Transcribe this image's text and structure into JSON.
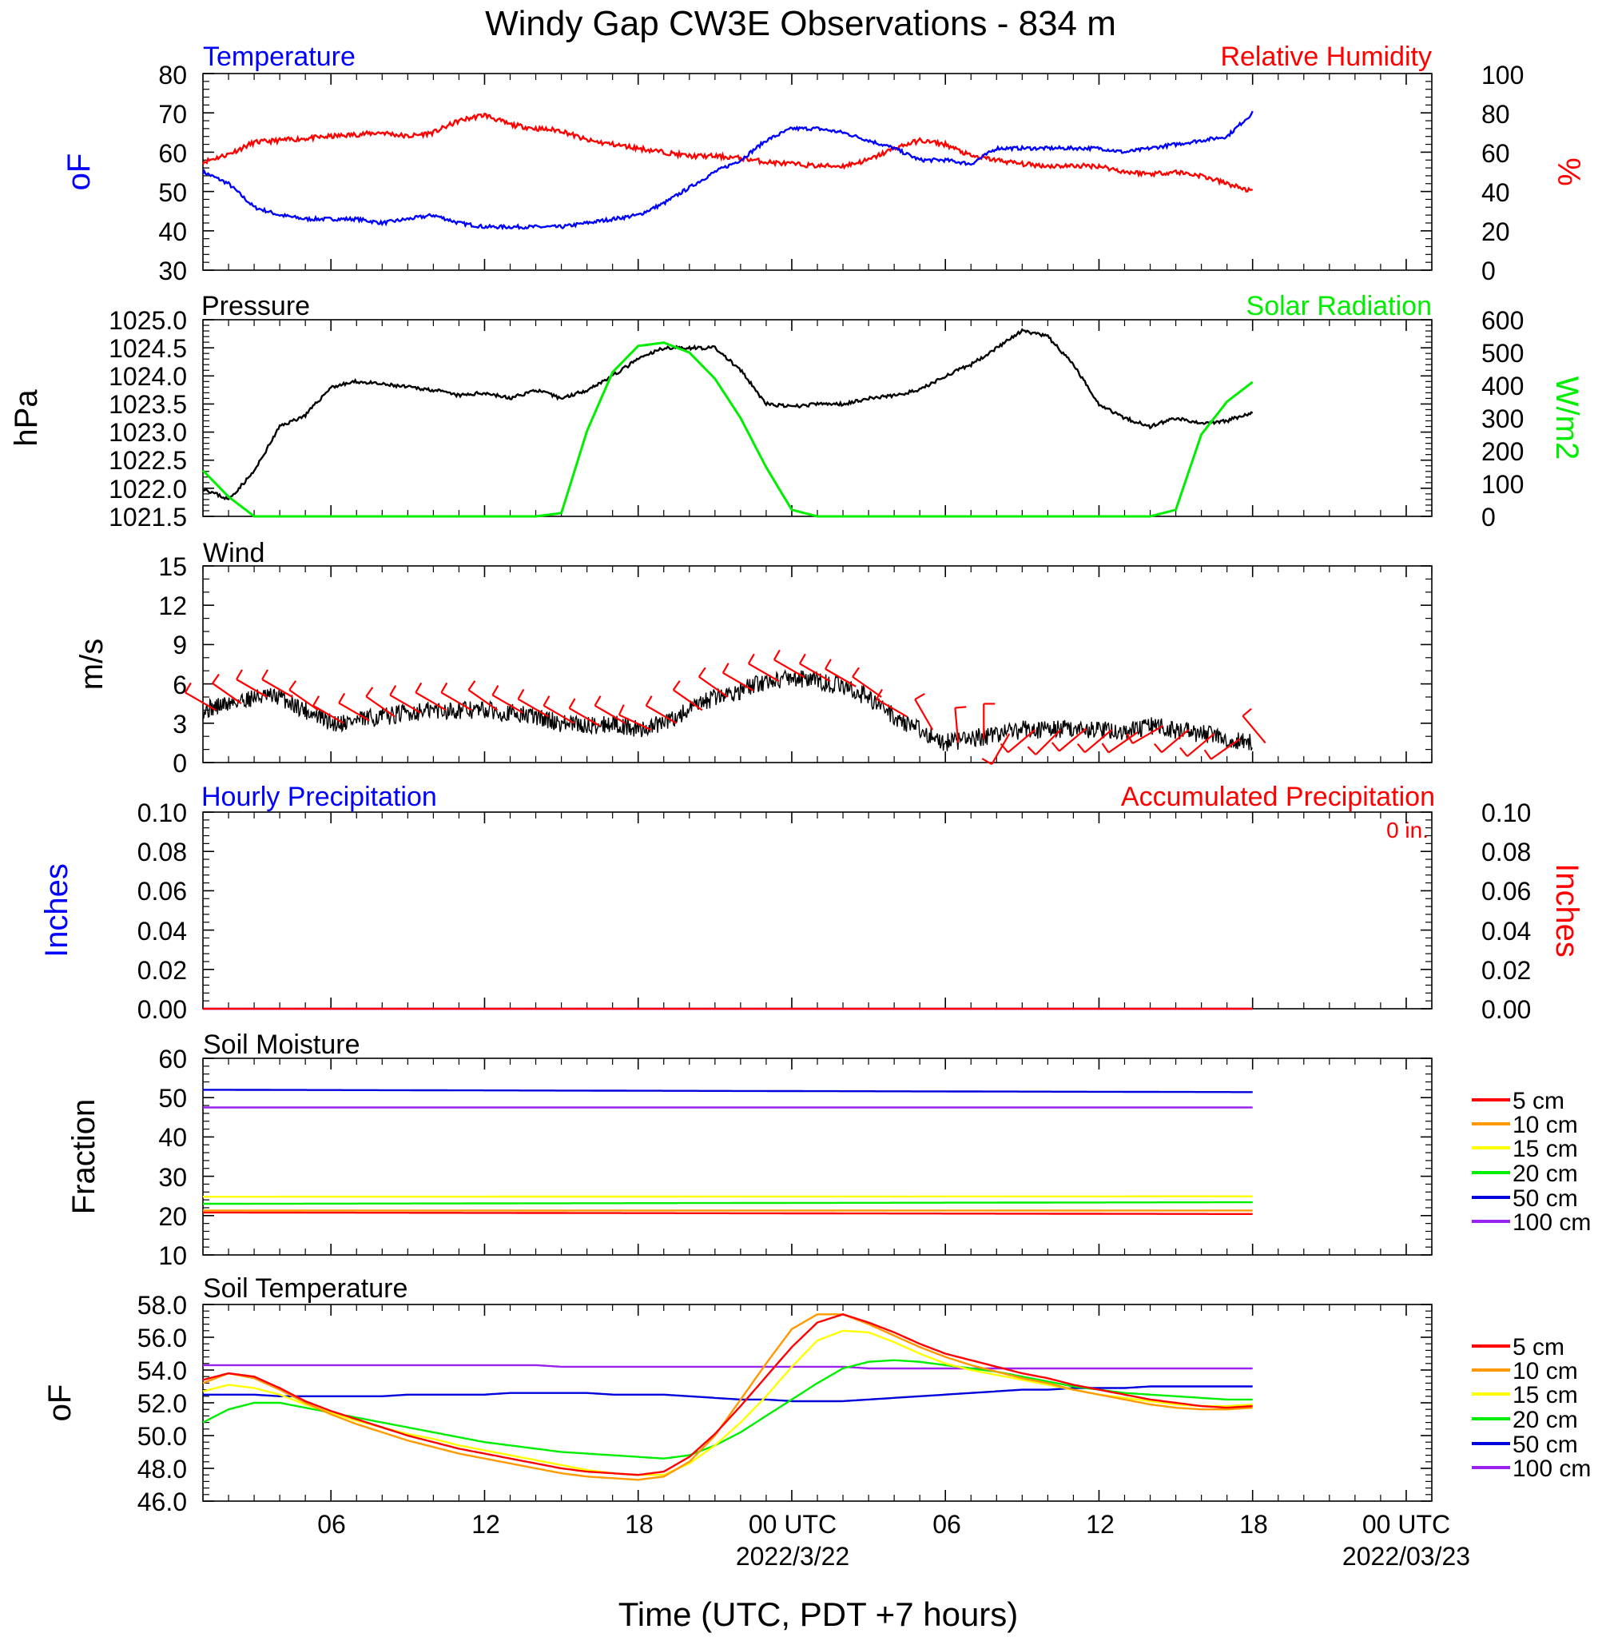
{
  "title": "Windy Gap CW3E Observations - 834 m",
  "x_axis": {
    "label": "Time (UTC, PDT +7 hours)",
    "range_hours": [
      0,
      48
    ],
    "ticks": [
      {
        "h": 5,
        "label": "06",
        "sub": ""
      },
      {
        "h": 11,
        "label": "12",
        "sub": ""
      },
      {
        "h": 17,
        "label": "18",
        "sub": ""
      },
      {
        "h": 23,
        "label": "00 UTC",
        "sub": "2022/3/22"
      },
      {
        "h": 29,
        "label": "06",
        "sub": ""
      },
      {
        "h": 35,
        "label": "12",
        "sub": ""
      },
      {
        "h": 41,
        "label": "18",
        "sub": ""
      },
      {
        "h": 47,
        "label": "00 UTC",
        "sub": "2022/03/23"
      }
    ]
  },
  "colors": {
    "temperature": "#0000ff",
    "humidity": "#ff0000",
    "pressure": "#000000",
    "solar": "#00ee00",
    "wind": "#000000",
    "barb": "#ff0000",
    "hourly_precip": "#0000ff",
    "accum_precip": "#ff0000",
    "depth_5": "#ff0000",
    "depth_10": "#ff9900",
    "depth_15": "#ffff00",
    "depth_20": "#00ee00",
    "depth_50": "#0000dd",
    "depth_100": "#9922ee"
  },
  "panels": {
    "temp_rh": {
      "title_left": "Temperature",
      "title_right": "Relative Humidity",
      "left_unit": "oF",
      "right_unit": "%",
      "left_ticks": [
        "80",
        "70",
        "60",
        "50",
        "40",
        "30"
      ],
      "right_ticks": [
        "100",
        "80",
        "60",
        "40",
        "20",
        "0"
      ]
    },
    "pressure_solar": {
      "title_left": "Pressure",
      "title_right": "Solar Radiation",
      "left_unit": "hPa",
      "right_unit": "W/m2",
      "left_ticks": [
        "1025.0",
        "1024.5",
        "1024.0",
        "1023.5",
        "1023.0",
        "1022.5",
        "1022.0",
        "1021.5"
      ],
      "right_ticks": [
        "600",
        "500",
        "400",
        "300",
        "200",
        "100",
        "0"
      ]
    },
    "wind": {
      "title_left": "Wind",
      "left_unit": "m/s",
      "left_ticks": [
        "15",
        "12",
        "9",
        "6",
        "3",
        "0"
      ]
    },
    "precip": {
      "title_left": "Hourly Precipitation",
      "title_right": "Accumulated Precipitation",
      "total": "0 in.",
      "left_unit": "Inches",
      "right_unit": "Inches",
      "left_ticks": [
        "0.10",
        "0.08",
        "0.06",
        "0.04",
        "0.02",
        "0.00"
      ],
      "right_ticks": [
        "0.10",
        "0.08",
        "0.06",
        "0.04",
        "0.02",
        "0.00"
      ]
    },
    "soil_moisture": {
      "title_left": "Soil Moisture",
      "left_unit": "Fraction",
      "left_ticks": [
        "60",
        "50",
        "40",
        "30",
        "20",
        "10"
      ],
      "legend": [
        "5 cm",
        "10 cm",
        "15 cm",
        "20 cm",
        "50 cm",
        "100 cm"
      ]
    },
    "soil_temp": {
      "title_left": "Soil Temperature",
      "left_unit": "oF",
      "left_ticks": [
        "58.0",
        "56.0",
        "54.0",
        "52.0",
        "50.0",
        "48.0",
        "46.0"
      ],
      "legend": [
        "5 cm",
        "10 cm",
        "15 cm",
        "20 cm",
        "50 cm",
        "100 cm"
      ]
    }
  },
  "chart_data": [
    {
      "type": "line",
      "title": "Temperature / Relative Humidity",
      "x_hours": [
        0,
        1,
        2,
        3,
        4,
        5,
        6,
        7,
        8,
        9,
        10,
        11,
        12,
        13,
        14,
        15,
        16,
        17,
        18,
        19,
        20,
        21,
        22,
        23,
        24,
        25,
        26,
        27,
        28,
        29,
        30,
        31,
        32,
        33,
        34,
        35,
        36,
        37,
        38,
        39,
        40,
        41
      ],
      "ylim_left": [
        30,
        80
      ],
      "ylim_right": [
        0,
        100
      ],
      "series": [
        {
          "name": "Temperature",
          "axis": "left",
          "values": [
            55,
            52,
            46,
            44,
            43,
            43,
            43,
            42,
            43,
            44,
            42,
            41,
            41,
            41,
            41,
            42,
            43,
            44,
            47,
            51,
            55,
            58,
            63,
            66,
            66,
            65,
            63,
            61,
            58,
            58,
            57,
            61,
            61,
            61,
            61,
            61,
            60,
            61,
            62,
            63,
            64,
            70
          ]
        },
        {
          "name": "Relative Humidity",
          "axis": "right",
          "values": [
            55,
            59,
            65,
            66,
            67,
            68,
            69,
            70,
            68,
            70,
            76,
            79,
            74,
            72,
            71,
            66,
            64,
            62,
            60,
            58,
            58,
            57,
            55,
            54,
            53,
            53,
            56,
            62,
            66,
            64,
            58,
            56,
            54,
            53,
            53,
            53,
            50,
            49,
            50,
            48,
            44,
            40
          ]
        }
      ]
    },
    {
      "type": "line",
      "title": "Pressure / Solar Radiation",
      "x_hours": [
        0,
        1,
        2,
        3,
        4,
        5,
        6,
        7,
        8,
        9,
        10,
        11,
        12,
        13,
        14,
        15,
        16,
        17,
        18,
        19,
        20,
        21,
        22,
        23,
        24,
        25,
        26,
        27,
        28,
        29,
        30,
        31,
        32,
        33,
        34,
        35,
        36,
        37,
        38,
        39,
        40,
        41
      ],
      "ylim_left": [
        1021.5,
        1025.0
      ],
      "ylim_right": [
        0,
        600
      ],
      "series": [
        {
          "name": "Pressure",
          "axis": "left",
          "values": [
            1022.0,
            1021.8,
            1022.3,
            1023.1,
            1023.3,
            1023.8,
            1023.9,
            1023.85,
            1023.8,
            1023.75,
            1023.65,
            1023.7,
            1023.6,
            1023.75,
            1023.6,
            1023.75,
            1024.0,
            1024.3,
            1024.5,
            1024.5,
            1024.5,
            1024.1,
            1023.5,
            1023.45,
            1023.5,
            1023.5,
            1023.6,
            1023.65,
            1023.75,
            1024.0,
            1024.2,
            1024.5,
            1024.8,
            1024.7,
            1024.2,
            1023.5,
            1023.25,
            1023.1,
            1023.25,
            1023.15,
            1023.2,
            1023.35
          ]
        },
        {
          "name": "Solar Radiation",
          "axis": "right",
          "values": [
            140,
            60,
            0,
            0,
            0,
            0,
            0,
            0,
            0,
            0,
            0,
            0,
            0,
            0,
            10,
            260,
            440,
            520,
            530,
            500,
            420,
            300,
            150,
            20,
            0,
            0,
            0,
            0,
            0,
            0,
            0,
            0,
            0,
            0,
            0,
            0,
            0,
            0,
            20,
            250,
            350,
            410
          ]
        }
      ]
    },
    {
      "type": "line",
      "title": "Wind",
      "x_hours": [
        0,
        1,
        2,
        3,
        4,
        5,
        6,
        7,
        8,
        9,
        10,
        11,
        12,
        13,
        14,
        15,
        16,
        17,
        18,
        19,
        20,
        21,
        22,
        23,
        24,
        25,
        26,
        27,
        28,
        29,
        30,
        31,
        32,
        33,
        34,
        35,
        36,
        37,
        38,
        39,
        40,
        41
      ],
      "ylim": [
        0,
        15
      ],
      "series": [
        {
          "name": "Wind speed",
          "values": [
            4,
            4.5,
            5,
            5,
            4,
            3,
            3.2,
            3.5,
            3.8,
            4,
            4,
            4,
            3.8,
            3.5,
            3,
            2.8,
            3,
            2.5,
            3,
            4,
            5,
            5.5,
            6.2,
            6.5,
            6.2,
            5.8,
            5,
            3.5,
            2.5,
            1.5,
            1.8,
            2.2,
            2.5,
            2.5,
            2.6,
            2.5,
            2.3,
            2.8,
            2.5,
            2.2,
            1.8,
            1.5
          ]
        }
      ],
      "barb_direction_deg": [
        300,
        305,
        300,
        300,
        305,
        300,
        300,
        305,
        300,
        300,
        300,
        305,
        300,
        300,
        300,
        300,
        300,
        295,
        300,
        305,
        305,
        300,
        300,
        300,
        300,
        300,
        305,
        300,
        330,
        355,
        0,
        210,
        230,
        225,
        230,
        230,
        235,
        240,
        230,
        230,
        235,
        320
      ]
    },
    {
      "type": "line",
      "title": "Hourly Precipitation / Accumulated Precipitation",
      "x_hours": [
        0,
        41
      ],
      "ylim": [
        0,
        0.1
      ],
      "series": [
        {
          "name": "Hourly Precipitation",
          "values": [
            0,
            0
          ]
        },
        {
          "name": "Accumulated Precipitation",
          "values": [
            0,
            0
          ]
        }
      ]
    },
    {
      "type": "line",
      "title": "Soil Moisture",
      "x_hours": [
        0,
        41
      ],
      "ylim": [
        10,
        60
      ],
      "series": [
        {
          "name": "5 cm",
          "values": [
            20.8,
            20.4
          ]
        },
        {
          "name": "10 cm",
          "values": [
            21.3,
            21.3
          ]
        },
        {
          "name": "15 cm",
          "values": [
            24.8,
            24.9
          ]
        },
        {
          "name": "20 cm",
          "values": [
            23.0,
            23.4
          ]
        },
        {
          "name": "50 cm",
          "values": [
            52.0,
            51.4
          ]
        },
        {
          "name": "100 cm",
          "values": [
            47.5,
            47.5
          ]
        }
      ]
    },
    {
      "type": "line",
      "title": "Soil Temperature",
      "x_hours": [
        0,
        1,
        2,
        3,
        4,
        5,
        6,
        7,
        8,
        9,
        10,
        11,
        12,
        13,
        14,
        15,
        16,
        17,
        18,
        19,
        20,
        21,
        22,
        23,
        24,
        25,
        26,
        27,
        28,
        29,
        30,
        31,
        32,
        33,
        34,
        35,
        36,
        37,
        38,
        39,
        40,
        41
      ],
      "ylim": [
        46,
        58
      ],
      "series": [
        {
          "name": "5 cm",
          "values": [
            53.4,
            53.8,
            53.6,
            52.9,
            52.1,
            51.5,
            51.0,
            50.5,
            50.0,
            49.6,
            49.2,
            48.9,
            48.6,
            48.3,
            48.0,
            47.8,
            47.7,
            47.6,
            47.8,
            48.7,
            50.1,
            51.8,
            53.6,
            55.4,
            56.9,
            57.4,
            56.9,
            56.3,
            55.6,
            55.0,
            54.6,
            54.2,
            53.8,
            53.5,
            53.1,
            52.8,
            52.5,
            52.2,
            52.0,
            51.8,
            51.7,
            51.8
          ]
        },
        {
          "name": "10 cm",
          "values": [
            53.2,
            53.8,
            53.5,
            52.8,
            52.0,
            51.3,
            50.7,
            50.2,
            49.7,
            49.3,
            48.9,
            48.6,
            48.3,
            48.0,
            47.7,
            47.5,
            47.4,
            47.3,
            47.5,
            48.4,
            50.0,
            52.2,
            54.4,
            56.5,
            57.4,
            57.4,
            56.8,
            56.1,
            55.4,
            54.8,
            54.3,
            53.9,
            53.5,
            53.2,
            52.8,
            52.5,
            52.2,
            51.9,
            51.7,
            51.6,
            51.6,
            51.7
          ]
        },
        {
          "name": "15 cm",
          "values": [
            52.7,
            53.1,
            52.9,
            52.5,
            51.9,
            51.4,
            50.9,
            50.5,
            50.1,
            49.8,
            49.4,
            49.1,
            48.8,
            48.5,
            48.2,
            47.9,
            47.7,
            47.6,
            47.6,
            48.3,
            49.4,
            50.8,
            52.4,
            54.2,
            55.8,
            56.4,
            56.3,
            55.7,
            55.0,
            54.4,
            54.0,
            53.7,
            53.4,
            53.1,
            52.8,
            52.5,
            52.3,
            52.1,
            51.9,
            51.8,
            51.8,
            51.9
          ]
        },
        {
          "name": "20 cm",
          "values": [
            50.8,
            51.6,
            52.0,
            52.0,
            51.7,
            51.4,
            51.1,
            50.8,
            50.5,
            50.2,
            49.9,
            49.6,
            49.4,
            49.2,
            49.0,
            48.9,
            48.8,
            48.7,
            48.6,
            48.8,
            49.4,
            50.2,
            51.2,
            52.2,
            53.2,
            54.1,
            54.5,
            54.6,
            54.5,
            54.3,
            54.1,
            53.9,
            53.6,
            53.3,
            53.0,
            52.8,
            52.6,
            52.5,
            52.4,
            52.3,
            52.2,
            52.2
          ]
        },
        {
          "name": "50 cm",
          "values": [
            52.5,
            52.5,
            52.5,
            52.4,
            52.4,
            52.4,
            52.4,
            52.4,
            52.5,
            52.5,
            52.5,
            52.5,
            52.6,
            52.6,
            52.6,
            52.6,
            52.5,
            52.5,
            52.5,
            52.4,
            52.3,
            52.2,
            52.2,
            52.1,
            52.1,
            52.1,
            52.2,
            52.3,
            52.4,
            52.5,
            52.6,
            52.7,
            52.8,
            52.8,
            52.9,
            52.9,
            52.9,
            53.0,
            53.0,
            53.0,
            53.0,
            53.0
          ]
        },
        {
          "name": "100 cm",
          "values": [
            54.3,
            54.3,
            54.3,
            54.3,
            54.3,
            54.3,
            54.3,
            54.3,
            54.3,
            54.3,
            54.3,
            54.3,
            54.3,
            54.3,
            54.2,
            54.2,
            54.2,
            54.2,
            54.2,
            54.2,
            54.2,
            54.2,
            54.2,
            54.2,
            54.2,
            54.2,
            54.1,
            54.1,
            54.1,
            54.1,
            54.1,
            54.1,
            54.1,
            54.1,
            54.1,
            54.1,
            54.1,
            54.1,
            54.1,
            54.1,
            54.1,
            54.1
          ]
        }
      ]
    }
  ]
}
